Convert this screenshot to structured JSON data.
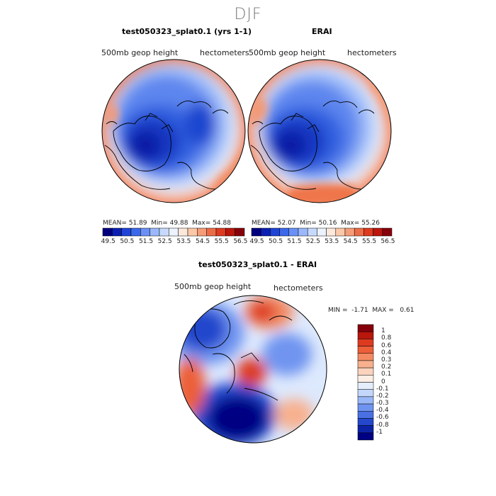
{
  "figure": {
    "season": "DJF",
    "panels": [
      {
        "title": "test050323_splat0.1 (yrs 1-1)",
        "variable": "500mb geop height",
        "units": "hectometers",
        "stats": {
          "mean_label": "MEAN=",
          "mean": "51.89",
          "min_label": "Min=",
          "min": "49.88",
          "max_label": "Max=",
          "max": "54.88"
        }
      },
      {
        "title": "ERAI",
        "variable": "500mb geop height",
        "units": "hectometers",
        "stats": {
          "mean_label": "MEAN=",
          "mean": "52.07",
          "min_label": "Min=",
          "min": "50.16",
          "max_label": "Max=",
          "max": "55.26"
        }
      }
    ],
    "shared_colorbar": {
      "ticks": [
        "49.5",
        "50.5",
        "51.5",
        "52.5",
        "53.5",
        "54.5",
        "55.5",
        "56.5"
      ],
      "colors": [
        "#00007f",
        "#0b1fb3",
        "#1f44d6",
        "#3c68ea",
        "#6a90f5",
        "#9ab8fb",
        "#c7dafd",
        "#ecf2fe",
        "#fde9dc",
        "#fbc8a9",
        "#f59d78",
        "#ec6c48",
        "#dd3a20",
        "#b9160c",
        "#85000b"
      ]
    },
    "diff_panel": {
      "title": "test050323_splat0.1 - ERAI",
      "variable": "500mb geop height",
      "units": "hectometers",
      "stats": {
        "min_label": "MIN =",
        "min": "-1.71",
        "max_label": "MAX =",
        "max": "0.61"
      },
      "colorbar": {
        "labels": [
          "1",
          "0.8",
          "0.6",
          "0.4",
          "0.3",
          "0.2",
          "0.1",
          "0",
          "-0.1",
          "-0.2",
          "-0.3",
          "-0.4",
          "-0.6",
          "-0.8",
          "-1"
        ],
        "colors": [
          "#85000b",
          "#b9160c",
          "#dd3a20",
          "#ec5f38",
          "#f38a62",
          "#f8b08e",
          "#fbd3bd",
          "#fdeee5",
          "#e4eefd",
          "#c3d7fb",
          "#9ab8f8",
          "#6f94f0",
          "#4a71e3",
          "#2447cc",
          "#0c23a6",
          "#000083"
        ]
      }
    },
    "colors": {
      "deep_blue": "#0a25c8",
      "mid_blue": "#3f6ee8",
      "light_blue": "#b6cffa",
      "red": "#e0472a",
      "orange": "#f49a74"
    }
  }
}
